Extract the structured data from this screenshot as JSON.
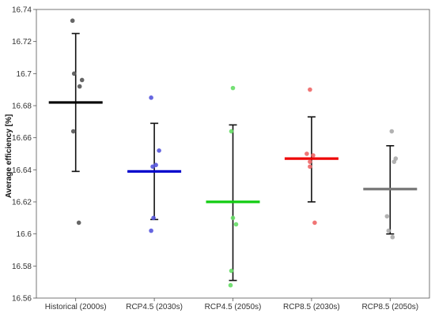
{
  "chart_data": {
    "type": "scatter",
    "title": "",
    "xlabel": "",
    "ylabel": "Average efficiency [%]",
    "ylim": [
      16.56,
      16.74
    ],
    "yticks": [
      16.56,
      16.58,
      16.6,
      16.62,
      16.64,
      16.66,
      16.68,
      16.7,
      16.72,
      16.74
    ],
    "ytick_labels": [
      "16.56",
      "16.58",
      "16.6",
      "16.62",
      "16.64",
      "16.66",
      "16.68",
      "16.7",
      "16.72",
      "16.74"
    ],
    "grid": false,
    "categories": [
      "Historical (2000s)",
      "RCP4.5 (2030s)",
      "RCP4.5 (2050s)",
      "RCP8.5 (2030s)",
      "RCP8.5 (2050s)"
    ],
    "series": [
      {
        "color": "#000000",
        "point_color": "#555555",
        "mean": 16.682,
        "error_low": 16.639,
        "error_high": 16.725,
        "points": [
          16.733,
          16.7,
          16.696,
          16.692,
          16.664,
          16.607
        ],
        "jitter": [
          -4,
          -2,
          8,
          5,
          -3,
          4
        ]
      },
      {
        "color": "#0000cc",
        "point_color": "#5555dd",
        "mean": 16.639,
        "error_low": 16.609,
        "error_high": 16.669,
        "points": [
          16.685,
          16.652,
          16.643,
          16.642,
          16.61,
          16.602
        ],
        "jitter": [
          -4,
          6,
          2,
          -2,
          -1,
          -4
        ]
      },
      {
        "color": "#11cc11",
        "point_color": "#66dd66",
        "mean": 16.62,
        "error_low": 16.571,
        "error_high": 16.668,
        "points": [
          16.691,
          16.664,
          16.61,
          16.606,
          16.577,
          16.568
        ],
        "jitter": [
          0,
          -2,
          0,
          4,
          -2,
          -3
        ]
      },
      {
        "color": "#ee0000",
        "point_color": "#ee6666",
        "mean": 16.647,
        "error_low": 16.62,
        "error_high": 16.673,
        "points": [
          16.69,
          16.65,
          16.649,
          16.645,
          16.642,
          16.607
        ],
        "jitter": [
          -2,
          -6,
          2,
          -2,
          -2,
          4
        ]
      },
      {
        "color": "#777777",
        "point_color": "#aaaaaa",
        "mean": 16.628,
        "error_low": 16.6,
        "error_high": 16.655,
        "points": [
          16.664,
          16.647,
          16.645,
          16.611,
          16.602,
          16.598
        ],
        "jitter": [
          2,
          7,
          5,
          -4,
          -2,
          3
        ]
      }
    ]
  }
}
